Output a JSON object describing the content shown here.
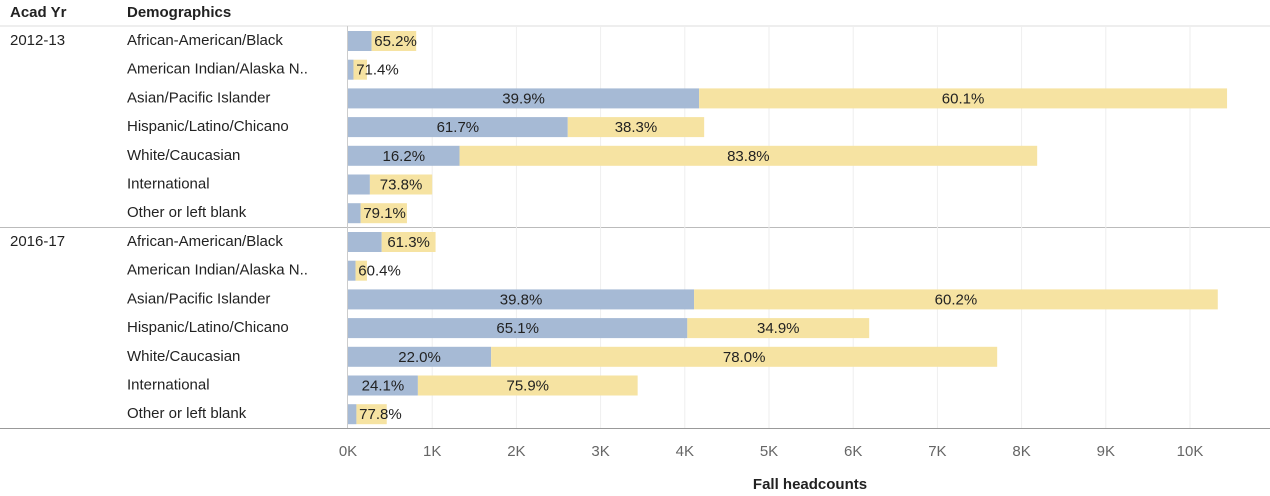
{
  "chart_data": {
    "type": "bar",
    "orientation": "horizontal",
    "stacked": true,
    "row_header": "Acad Yr",
    "column_header": "Demographics",
    "x_label": "Fall headcounts",
    "categories": [
      "African-American/Black",
      "American Indian/Alaska N..",
      "Asian/Pacific Islander",
      "Hispanic/Latino/Chicano",
      "White/Caucasian",
      "International",
      "Other or left blank"
    ],
    "xlim": [
      0,
      10950
    ],
    "xticks": [
      {
        "value": 0,
        "label": "0K"
      },
      {
        "value": 1000,
        "label": "1K"
      },
      {
        "value": 2000,
        "label": "2K"
      },
      {
        "value": 3000,
        "label": "3K"
      },
      {
        "value": 4000,
        "label": "4K"
      },
      {
        "value": 5000,
        "label": "5K"
      },
      {
        "value": 6000,
        "label": "6K"
      },
      {
        "value": 7000,
        "label": "7K"
      },
      {
        "value": 8000,
        "label": "8K"
      },
      {
        "value": 9000,
        "label": "9K"
      },
      {
        "value": 10000,
        "label": "10K"
      }
    ],
    "grid": true,
    "panels": [
      {
        "group": "2012-13",
        "series": [
          {
            "color": "#a6bad5",
            "values": [
              280,
              65,
              4170,
              2610,
              1325,
              260,
              150
            ],
            "percent_labels": [
              null,
              null,
              "39.9%",
              "61.7%",
              "16.2%",
              null,
              null
            ]
          },
          {
            "color": "#f6e3a2",
            "values": [
              530,
              160,
              6270,
              1620,
              6860,
              740,
              550
            ],
            "percent_labels": [
              "65.2%",
              "71.4%",
              "60.1%",
              "38.3%",
              "83.8%",
              "73.8%",
              "79.1%"
            ]
          }
        ]
      },
      {
        "group": "2016-17",
        "series": [
          {
            "color": "#a6bad5",
            "values": [
              400,
              90,
              4110,
              4030,
              1700,
              830,
              100
            ],
            "percent_labels": [
              null,
              null,
              "39.8%",
              "65.1%",
              "22.0%",
              "24.1%",
              null
            ]
          },
          {
            "color": "#f6e3a2",
            "values": [
              640,
              135,
              6220,
              2160,
              6010,
              2610,
              360
            ],
            "percent_labels": [
              "61.3%",
              "60.4%",
              "60.2%",
              "34.9%",
              "78.0%",
              "75.9%",
              "77.8%"
            ]
          }
        ]
      }
    ]
  }
}
